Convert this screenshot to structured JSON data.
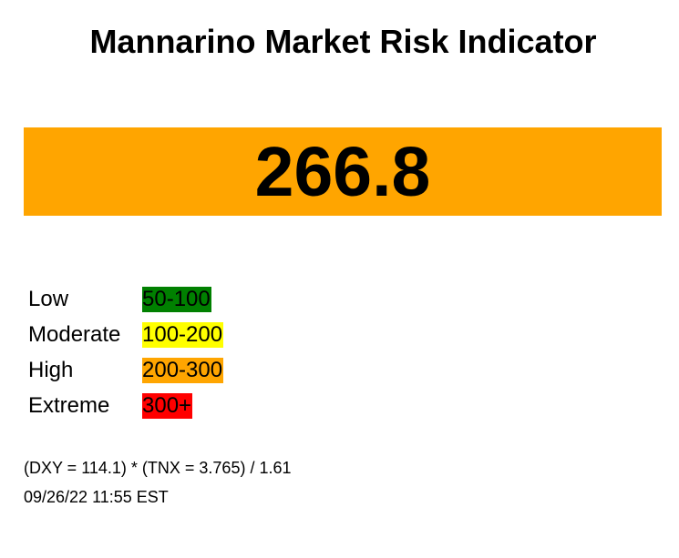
{
  "title": "Mannarino Market Risk Indicator",
  "risk": {
    "value": "266.8",
    "color": "#FFA500"
  },
  "legend": {
    "rows": [
      {
        "label": "Low",
        "range": "50-100",
        "color": "#008000"
      },
      {
        "label": "Moderate",
        "range": "100-200",
        "color": "#FFFF00"
      },
      {
        "label": "High",
        "range": "200-300",
        "color": "#FFA500"
      },
      {
        "label": "Extreme",
        "range": "300+",
        "color": "#FF0000"
      }
    ]
  },
  "formula": "(DXY = 114.1) * (TNX = 3.765) / 1.61",
  "timestamp": "09/26/22 11:55 EST"
}
